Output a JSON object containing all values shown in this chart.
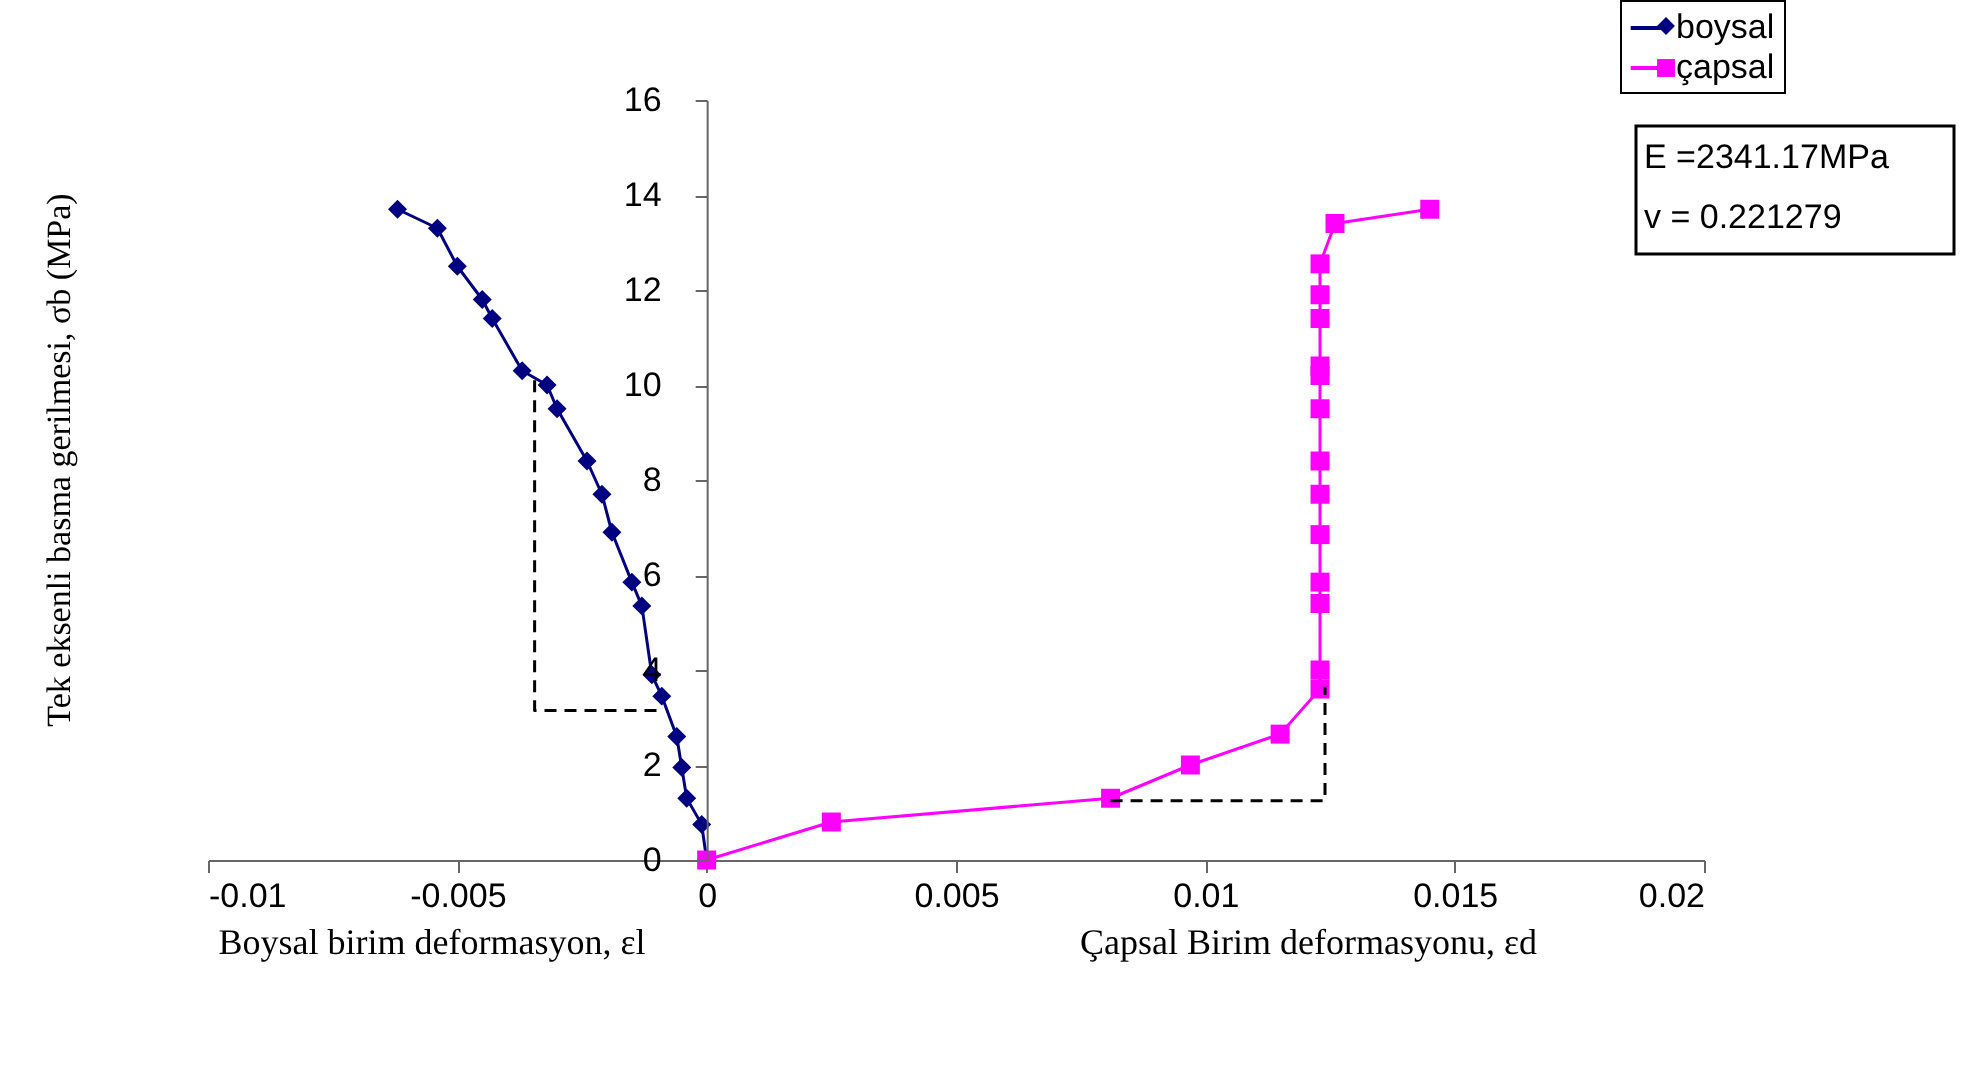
{
  "chart_data": {
    "type": "line",
    "xlabel": "Boysal birim deformasyon, εl",
    "ylabel": "Tek eksenli basma gerilmesi, σb  (MPa)",
    "annotations": [
      "E =2341.17MPa",
      "v = 0.221279",
      "Çapsal Birim deformasyonu, εd"
    ],
    "xlim": [
      -0.01,
      0.02
    ],
    "xticks": [
      -0.01,
      -0.005,
      0,
      0.005,
      0.01,
      0.015,
      0.02
    ],
    "ylim": [
      0,
      16
    ],
    "yticks": [
      0,
      2,
      4,
      6,
      8,
      10,
      12,
      14,
      16
    ],
    "grid": false,
    "legend": "top right",
    "series": [
      {
        "name": "boysal",
        "color": "#000080",
        "marker": "diamond",
        "line_style": "solid",
        "x": [
          -0.0062,
          -0.0054,
          -0.005,
          -0.0045,
          -0.0043,
          -0.0037,
          -0.0032,
          -0.003,
          -0.0024,
          -0.0021,
          -0.0019,
          -0.0015,
          -0.0013,
          -0.0011,
          -0.0009,
          -0.0006,
          -0.0005,
          -0.0004,
          -0.0001,
          0
        ],
        "values": [
          13.7,
          13.3,
          12.5,
          11.8,
          11.4,
          10.3,
          10.0,
          9.5,
          8.4,
          7.7,
          6.9,
          5.85,
          5.35,
          3.9,
          3.45,
          2.6,
          1.95,
          1.3,
          0.75,
          0
        ]
      },
      {
        "name": "çapsal",
        "color": "#ff00ff",
        "marker": "square",
        "line_style": "solid",
        "x": [
          0,
          0.0025,
          0.0081,
          0.0097,
          0.0115,
          0.0123,
          0.0123,
          0.0123,
          0.0123,
          0.0123,
          0.0123,
          0.0123,
          0.0123,
          0.0123,
          0.0123,
          0.0123,
          0.0123,
          0.0123,
          0.0126,
          0.0145
        ],
        "values": [
          0,
          0.8,
          1.3,
          2.0,
          2.65,
          3.6,
          4.0,
          5.4,
          5.85,
          6.85,
          7.7,
          8.4,
          9.5,
          10.2,
          10.4,
          11.4,
          11.9,
          12.55,
          13.4,
          13.7
        ]
      },
      {
        "color": "#000000",
        "marker": "none",
        "line_style": "dashed",
        "x": [
          -0.00345,
          -0.00345,
          -0.00096
        ],
        "values": [
          10.1,
          3.15,
          3.15
        ]
      },
      {
        "color": "#000000",
        "marker": "none",
        "line_style": "dashed",
        "x": [
          0.0081,
          0.0124,
          0.0124
        ],
        "values": [
          1.25,
          1.25,
          3.65
        ]
      }
    ]
  }
}
